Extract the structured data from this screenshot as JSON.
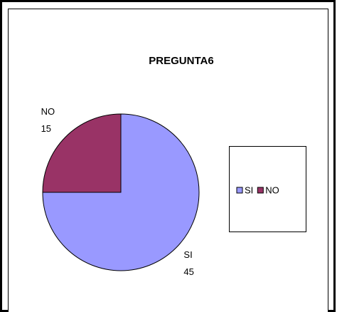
{
  "chart_data": {
    "type": "pie",
    "title": "PREGUNTA6",
    "categories": [
      "SI",
      "NO"
    ],
    "values": [
      45,
      15
    ],
    "colors": [
      "#9999ff",
      "#993366"
    ],
    "legend": "right"
  }
}
